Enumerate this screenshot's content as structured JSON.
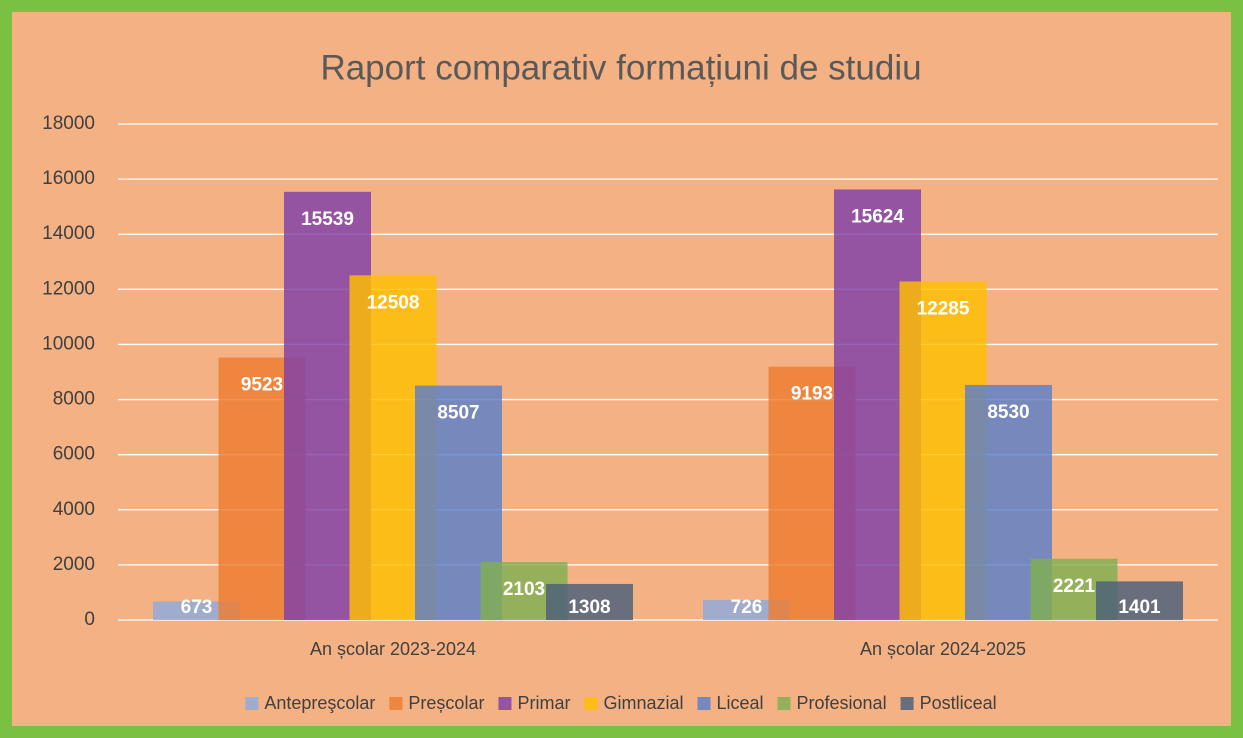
{
  "chart_data": {
    "type": "bar",
    "title": "Raport comparativ formațiuni de studiu",
    "categories": [
      "An școlar 2023-2024",
      "An școlar 2024-2025"
    ],
    "series": [
      {
        "name": "Antepreşcolar",
        "color": "#8faadc",
        "values": [
          673,
          726
        ]
      },
      {
        "name": "Preșcolar",
        "color": "#ed7d31",
        "values": [
          9523,
          9193
        ]
      },
      {
        "name": "Primar",
        "color": "#7f3fa8",
        "values": [
          15539,
          15624
        ]
      },
      {
        "name": "Gimnazial",
        "color": "#ffc000",
        "values": [
          12508,
          12285
        ]
      },
      {
        "name": "Liceal",
        "color": "#5b7fc8",
        "values": [
          8507,
          8530
        ]
      },
      {
        "name": "Profesional",
        "color": "#80b050",
        "values": [
          2103,
          2221
        ]
      },
      {
        "name": "Postliceal",
        "color": "#4a5f7a",
        "values": [
          1308,
          1401
        ]
      }
    ],
    "ylim": [
      0,
      18000
    ],
    "yticks": [
      0,
      2000,
      4000,
      6000,
      8000,
      10000,
      12000,
      14000,
      16000,
      18000
    ],
    "grid": true,
    "legend": "bottom"
  }
}
